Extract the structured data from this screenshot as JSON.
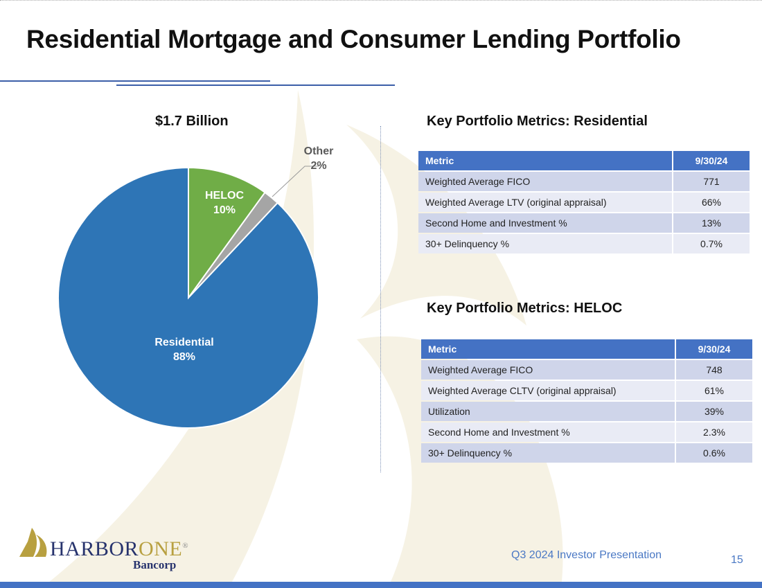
{
  "title": "Residential Mortgage and Consumer Lending Portfolio",
  "chart_data": {
    "type": "pie",
    "title": "$1.7 Billion",
    "slices": [
      {
        "name": "HELOC",
        "value": 10,
        "label": "10%",
        "color": "#70AD47"
      },
      {
        "name": "Other",
        "value": 2,
        "label": "2%",
        "color": "#A5A5A5"
      },
      {
        "name": "Residential",
        "value": 88,
        "label": "88%",
        "color": "#2E75B6"
      }
    ],
    "start": "top",
    "direction": "clockwise"
  },
  "residential": {
    "heading": "Key Portfolio Metrics:  Residential",
    "columns": [
      "Metric",
      "9/30/24"
    ],
    "rows": [
      [
        "Weighted Average FICO",
        "771"
      ],
      [
        "Weighted Average LTV (original appraisal)",
        "66%"
      ],
      [
        "Second Home and Investment %",
        "13%"
      ],
      [
        "30+ Delinquency %",
        "0.7%"
      ]
    ]
  },
  "heloc": {
    "heading": "Key Portfolio Metrics:  HELOC",
    "columns": [
      "Metric",
      "9/30/24"
    ],
    "rows": [
      [
        "Weighted Average FICO",
        "748"
      ],
      [
        "Weighted Average CLTV (original appraisal)",
        "61%"
      ],
      [
        "Utilization",
        "39%"
      ],
      [
        "Second Home and Investment %",
        "2.3%"
      ],
      [
        "30+ Delinquency %",
        "0.6%"
      ]
    ]
  },
  "logo": {
    "name": "HARBORONE",
    "sub": "Bancorp"
  },
  "footer": {
    "text": "Q3 2024 Investor Presentation",
    "page": "15"
  },
  "colors": {
    "accent": "#4472C4",
    "header": "#4472C4",
    "row_odd": "#CFD5EA",
    "row_even": "#E9EBF5",
    "watermark": "#F6F2E4"
  }
}
